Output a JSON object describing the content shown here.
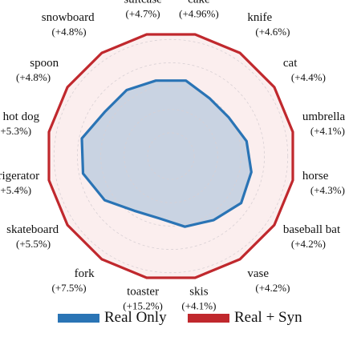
{
  "chart_data": {
    "type": "radar",
    "title": "",
    "axes": [
      {
        "name": "cake",
        "gain": "(+4.96%)"
      },
      {
        "name": "knife",
        "gain": "(+4.6%)"
      },
      {
        "name": "cat",
        "gain": "(+4.4%)"
      },
      {
        "name": "umbrella",
        "gain": "(+4.1%)"
      },
      {
        "name": "horse",
        "gain": "(+4.3%)"
      },
      {
        "name": "baseball bat",
        "gain": "(+4.2%)"
      },
      {
        "name": "vase",
        "gain": "(+4.2%)"
      },
      {
        "name": "skis",
        "gain": "(+4.1%)"
      },
      {
        "name": "toaster",
        "gain": "(+15.2%)"
      },
      {
        "name": "fork",
        "gain": "(+7.5%)"
      },
      {
        "name": "skateboard",
        "gain": "(+5.5%)"
      },
      {
        "name": "refrigerator",
        "gain": "(+5.4%)"
      },
      {
        "name": "hot dog",
        "gain": "(+5.3%)"
      },
      {
        "name": "spoon",
        "gain": "(+4.8%)"
      },
      {
        "name": "snowboard",
        "gain": "(+4.8%)"
      },
      {
        "name": "suitcase",
        "gain": "(+4.7%)"
      }
    ],
    "series": [
      {
        "name": "Real Only",
        "color": "#2a74b5",
        "fill": "#c9d3e2",
        "values": [
          0.62,
          0.56,
          0.56,
          0.62,
          0.66,
          0.68,
          0.62,
          0.58,
          0.51,
          0.53,
          0.64,
          0.72,
          0.73,
          0.64,
          0.64,
          0.62
        ]
      },
      {
        "name": "Real + Syn",
        "color": "#c0282d",
        "fill": "#fbeeee",
        "values": [
          1.0,
          1.0,
          1.0,
          1.0,
          1.0,
          1.0,
          1.0,
          1.0,
          1.0,
          1.0,
          1.0,
          1.0,
          1.0,
          1.0,
          1.0,
          1.0
        ]
      }
    ],
    "rlim": [
      0,
      1
    ],
    "grid": true,
    "legend_position": "bottom"
  }
}
